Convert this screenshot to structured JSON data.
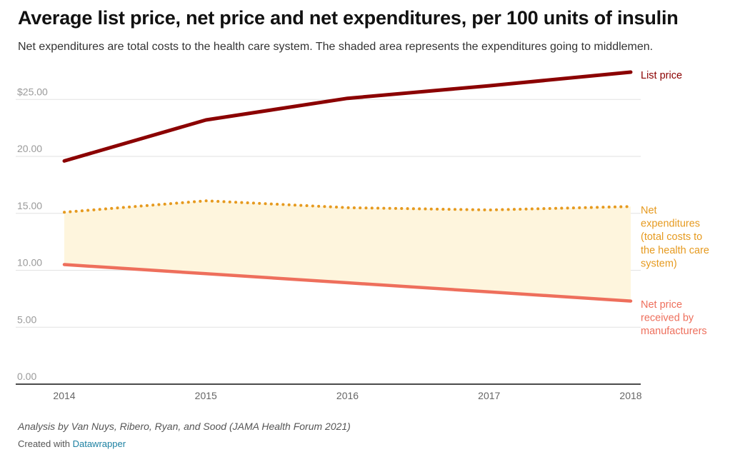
{
  "title": "Average list price, net price and net expenditures, per 100 units of insulin",
  "subtitle": "Net expenditures are total costs to the health care system. The shaded area represents the expenditures going to middlemen.",
  "notes": "Analysis by Van Nuys, Ribero, Ryan, and Sood (JAMA Health Forum 2021)",
  "credit": {
    "prefix": "Created with ",
    "link": "Datawrapper"
  },
  "colors": {
    "list_price": "#8b0000",
    "net_expenditures": "#e69a1f",
    "net_price": "#ee6f5c",
    "shade": "#fef5dd",
    "grid": "#e2e2e2",
    "axis_text": "#9a9a9a"
  },
  "chart_data": {
    "type": "line",
    "x": [
      "2014",
      "2015",
      "2016",
      "2017",
      "2018"
    ],
    "ylim": [
      0,
      28
    ],
    "y_ticks": [
      {
        "value": 0,
        "label": "0.00"
      },
      {
        "value": 5,
        "label": "5.00"
      },
      {
        "value": 10,
        "label": "10.00"
      },
      {
        "value": 15,
        "label": "15.00"
      },
      {
        "value": 20,
        "label": "20.00"
      },
      {
        "value": 25,
        "label": "$25.00"
      }
    ],
    "grid": true,
    "shaded_area": "between Net expenditures and Net price",
    "series": [
      {
        "key": "list_price",
        "label_lines": [
          "List price"
        ],
        "style": "solid",
        "values": [
          19.6,
          23.2,
          25.1,
          26.2,
          27.4
        ]
      },
      {
        "key": "net_expenditures",
        "label_lines": [
          "Net",
          "expenditures",
          "(total costs to",
          "the health care",
          "system)"
        ],
        "style": "dotted",
        "values": [
          15.1,
          16.1,
          15.5,
          15.3,
          15.6
        ]
      },
      {
        "key": "net_price",
        "label_lines": [
          "Net price",
          "received by",
          "manufacturers"
        ],
        "style": "solid",
        "values": [
          10.5,
          9.7,
          8.9,
          8.1,
          7.3
        ]
      }
    ]
  }
}
